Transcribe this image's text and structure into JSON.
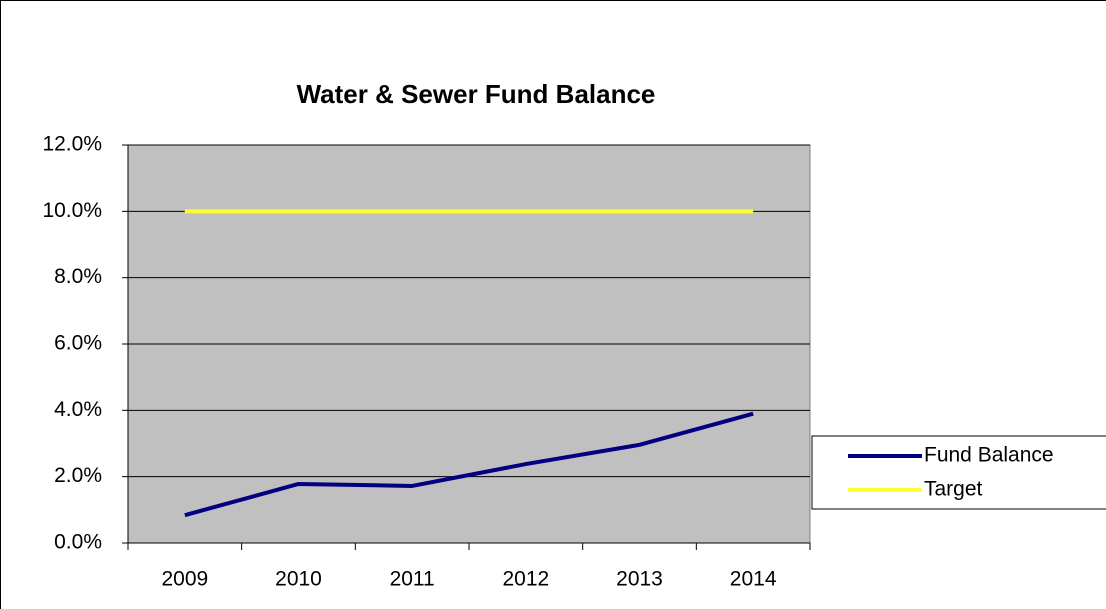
{
  "chart_data": {
    "type": "line",
    "title": "Water & Sewer Fund Balance",
    "categories": [
      "2009",
      "2010",
      "2011",
      "2012",
      "2013",
      "2014"
    ],
    "series": [
      {
        "name": "Fund Balance",
        "color": "#000080",
        "values": [
          0.84,
          1.78,
          1.72,
          2.38,
          2.96,
          3.9
        ]
      },
      {
        "name": "Target",
        "color": "#ffff33",
        "values": [
          10,
          10,
          10,
          10,
          10,
          10
        ]
      }
    ],
    "ylim": [
      0,
      12
    ],
    "yticks": [
      {
        "value": 0,
        "label": "0.0%"
      },
      {
        "value": 2,
        "label": "2.0%"
      },
      {
        "value": 4,
        "label": "4.0%"
      },
      {
        "value": 6,
        "label": "6.0%"
      },
      {
        "value": 8,
        "label": "8.0%"
      },
      {
        "value": 10,
        "label": "10.0%"
      },
      {
        "value": 12,
        "label": "12.0%"
      }
    ],
    "grid": true,
    "legend": "right"
  }
}
